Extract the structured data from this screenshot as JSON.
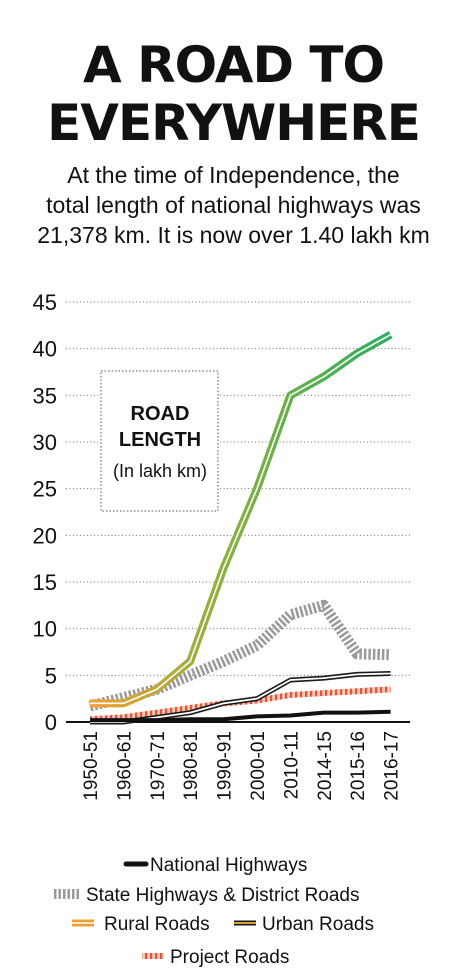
{
  "header": {
    "title_line1": "A ROAD TO",
    "title_line2": "EVERYWHERE",
    "subtitle_lines": [
      "At the time of Independence, the",
      "total length of national highways was",
      "21,378 km. It is now over 1.40 lakh km"
    ]
  },
  "chart_data": {
    "type": "line",
    "categories": [
      "1950-51",
      "1960-61",
      "1970-71",
      "1980-81",
      "1990-91",
      "2000-01",
      "2010-11",
      "2014-15",
      "2015-16",
      "2016-17"
    ],
    "ylim": [
      0,
      45
    ],
    "yticks": [
      0,
      5,
      10,
      15,
      20,
      25,
      30,
      35,
      40,
      45
    ],
    "grid": "dotted horizontal",
    "annotation": {
      "title_line1": "ROAD",
      "title_line2": "LENGTH",
      "unit": "(In lakh km)"
    },
    "legend_position": "bottom",
    "series": [
      {
        "name": "National Highways",
        "style": "black",
        "values": [
          0.2,
          0.2,
          0.2,
          0.3,
          0.3,
          0.6,
          0.7,
          1.0,
          1.0,
          1.1
        ]
      },
      {
        "name": "State Highways & District Roads",
        "style": "dotted-grey",
        "values": [
          1.7,
          2.6,
          3.5,
          5.0,
          6.5,
          8.2,
          11.5,
          12.5,
          7.3,
          7.2
        ]
      },
      {
        "name": "Rural Roads",
        "style": "gradient",
        "values": [
          2.0,
          2.0,
          3.5,
          6.5,
          16.5,
          25.0,
          35.0,
          37.0,
          39.5,
          41.5
        ]
      },
      {
        "name": "Urban Roads",
        "style": "outlined",
        "values": [
          0.0,
          0.0,
          0.5,
          1.0,
          2.0,
          2.5,
          4.5,
          4.7,
          5.1,
          5.2
        ]
      },
      {
        "name": "Project Roads",
        "style": "striped",
        "values": [
          0.3,
          0.5,
          1.0,
          1.5,
          2.0,
          2.3,
          2.9,
          3.1,
          3.3,
          3.5
        ]
      }
    ],
    "colors": {
      "national": "#111111",
      "state": "#9a9a9a",
      "rural_start": "#f0a030",
      "rural_mid": "#8ab040",
      "rural_end": "#2fae5e",
      "urban_fill": "#ffffff",
      "urban_edge": "#1a1a1a",
      "urban_accent": "#d8a030",
      "project": "#e2553d",
      "project_light": "#f6c8b8"
    }
  }
}
